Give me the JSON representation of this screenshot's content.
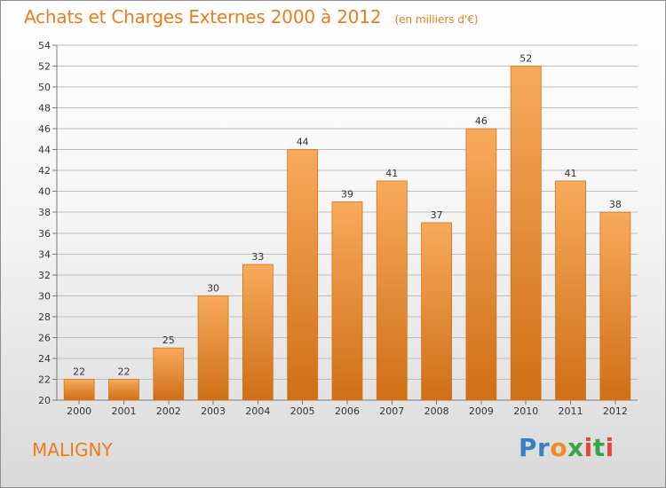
{
  "header": {
    "title": "Achats et Charges Externes 2000 à 2012",
    "subtitle": "(en milliers d'€)"
  },
  "footer": {
    "place_name": "MALIGNY",
    "logo_text": "Proxiti"
  },
  "colors": {
    "accent": "#ea7c1b",
    "bar_top": "#f7aa5b",
    "bar_bottom": "#cf6f16"
  },
  "chart_data": {
    "type": "bar",
    "title": "Achats et Charges Externes 2000 à 2012",
    "subtitle": "(en milliers d'€)",
    "categories": [
      "2000",
      "2001",
      "2002",
      "2003",
      "2004",
      "2005",
      "2006",
      "2007",
      "2008",
      "2009",
      "2010",
      "2011",
      "2012"
    ],
    "values": [
      22,
      22,
      25,
      30,
      33,
      44,
      39,
      41,
      37,
      46,
      52,
      41,
      38
    ],
    "ylim": [
      20,
      54
    ],
    "yticks": [
      20,
      22,
      24,
      26,
      28,
      30,
      32,
      34,
      36,
      38,
      40,
      42,
      44,
      46,
      48,
      50,
      52,
      54
    ],
    "grid": true,
    "data_labels": true
  }
}
